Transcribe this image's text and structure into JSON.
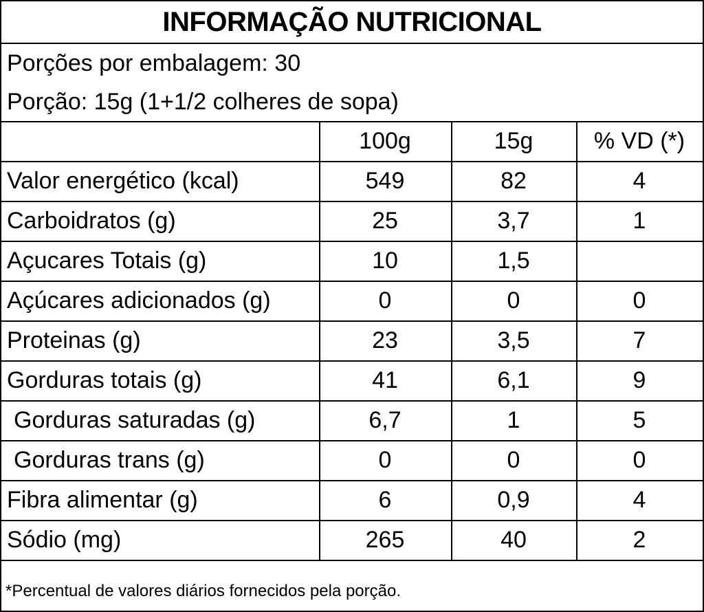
{
  "title": "INFORMAÇÃO NUTRICIONAL",
  "servings_per_package": "Porções por embalagem: 30",
  "serving_size": "Porção: 15g (1+1/2 colheres de sopa)",
  "columns": [
    "100g",
    "15g",
    "% VD (*)"
  ],
  "rows": [
    {
      "name": "Valor energético (kcal)",
      "per100": "549",
      "perServing": "82",
      "vd": "4",
      "indent": false
    },
    {
      "name": "Carboidratos (g)",
      "per100": "25",
      "perServing": "3,7",
      "vd": "1",
      "indent": false
    },
    {
      "name": "Açucares Totais (g)",
      "per100": "10",
      "perServing": "1,5",
      "vd": "",
      "indent": false
    },
    {
      "name": "Açúcares adicionados (g)",
      "per100": "0",
      "perServing": "0",
      "vd": "0",
      "indent": false
    },
    {
      "name": "Proteinas (g)",
      "per100": "23",
      "perServing": "3,5",
      "vd": "7",
      "indent": false
    },
    {
      "name": "Gorduras totais (g)",
      "per100": "41",
      "perServing": "6,1",
      "vd": "9",
      "indent": false
    },
    {
      "name": "Gorduras saturadas (g)",
      "per100": "6,7",
      "perServing": "1",
      "vd": "5",
      "indent": true
    },
    {
      "name": "Gorduras trans (g)",
      "per100": "0",
      "perServing": "0",
      "vd": "0",
      "indent": true
    },
    {
      "name": "Fibra alimentar (g)",
      "per100": "6",
      "perServing": "0,9",
      "vd": "4",
      "indent": false
    },
    {
      "name": "Sódio (mg)",
      "per100": "265",
      "perServing": "40",
      "vd": "2",
      "indent": false
    }
  ],
  "footnote": "*Percentual de valores diários fornecidos pela porção."
}
